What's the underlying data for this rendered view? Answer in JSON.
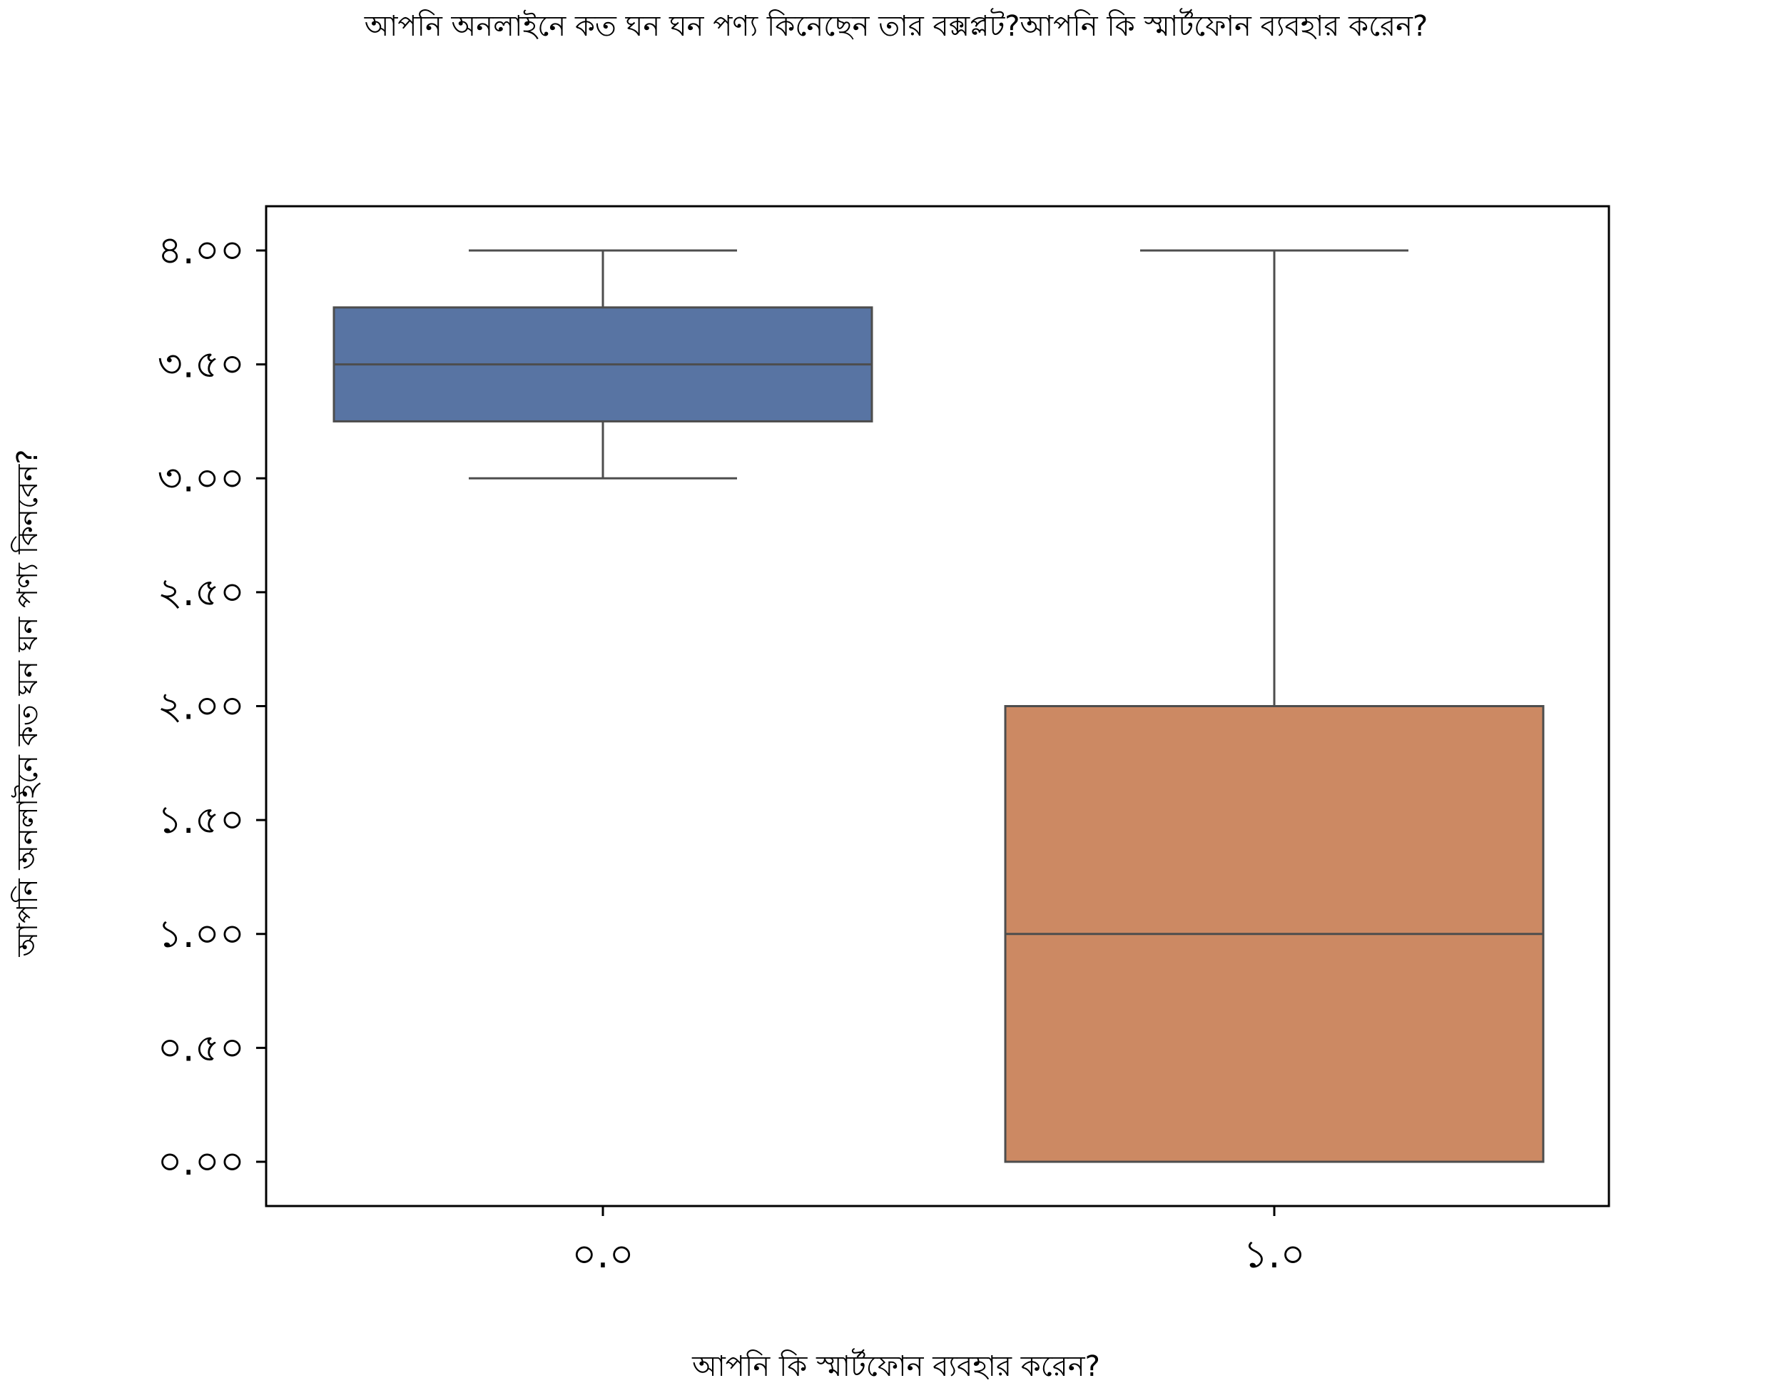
{
  "chart_data": {
    "type": "box",
    "title": "আপনি অনলাইনে কত ঘন ঘন পণ্য কিনেছেন তার বক্সপ্লট?আপনি কি স্মার্টফোন ব্যবহার করেন?",
    "xlabel": "আপনি কি স্মার্টফোন ব্যবহার করেন?",
    "ylabel": "আপনি অনলাইনে কত ঘন ঘন পণ্য কিনবেন?",
    "ylim": [
      -0.2,
      4.2
    ],
    "y_ticks": [
      0,
      0.5,
      1.0,
      1.5,
      2.0,
      2.5,
      3.0,
      3.5,
      4.0
    ],
    "y_tick_labels": [
      "০.০০",
      "০.৫০",
      "১.০০",
      "১.৫০",
      "২.০০",
      "২.৫০",
      "৩.০০",
      "৩.৫০",
      "৪.০০"
    ],
    "categories": [
      "০.০",
      "১.০"
    ],
    "grid": false,
    "legend": "none",
    "boxes": [
      {
        "category": "০.০",
        "whisker_low": 3.0,
        "q1": 3.25,
        "median": 3.5,
        "q3": 3.75,
        "whisker_high": 4.0,
        "color": "#5874a3"
      },
      {
        "category": "১.০",
        "whisker_low": 0.0,
        "q1": 0.0,
        "median": 1.0,
        "q3": 2.0,
        "whisker_high": 4.0,
        "color": "#cc8963"
      }
    ]
  }
}
